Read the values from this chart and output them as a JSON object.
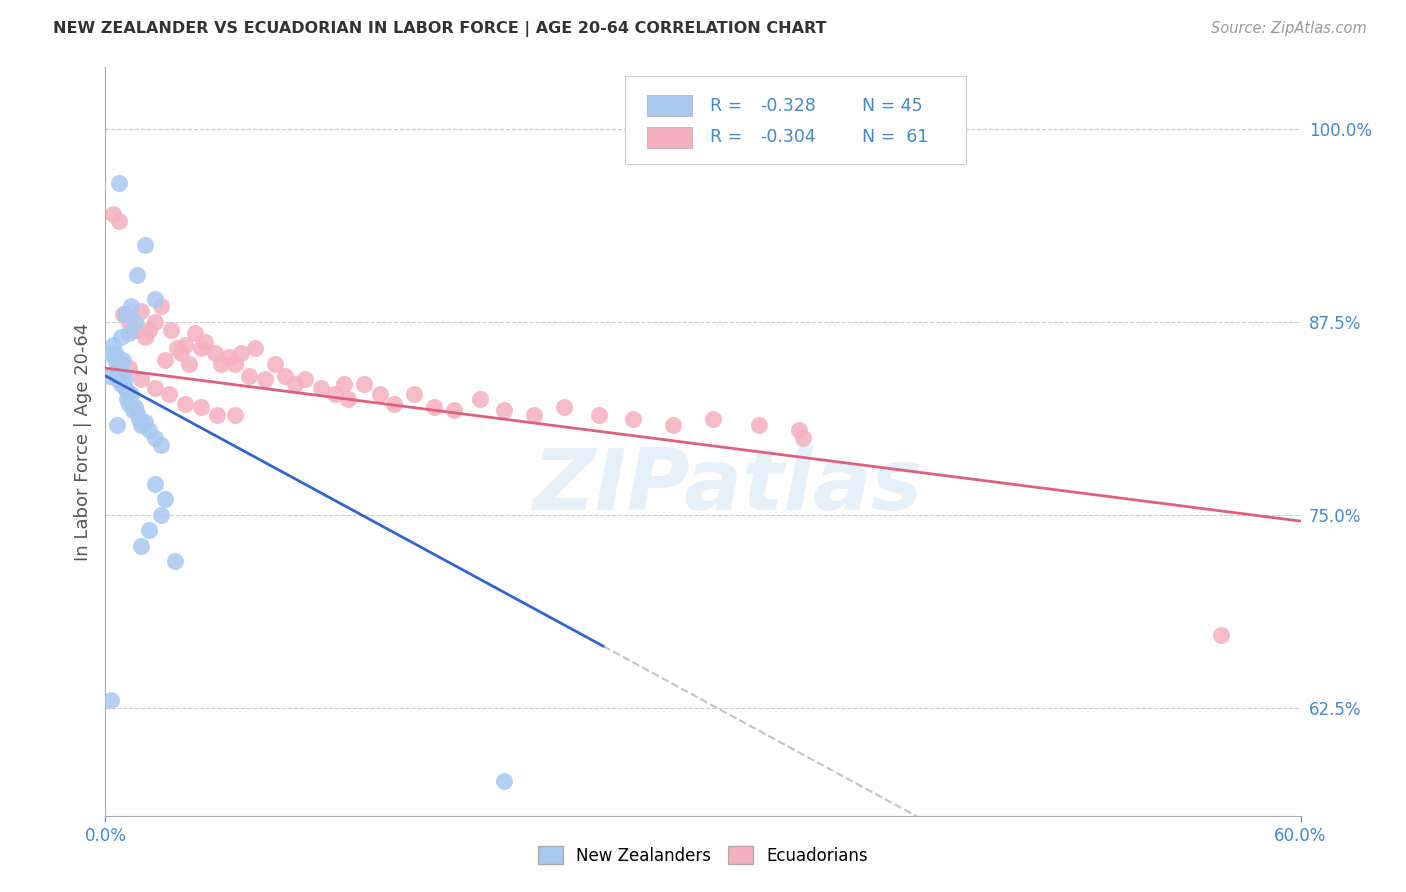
{
  "title": "NEW ZEALANDER VS ECUADORIAN IN LABOR FORCE | AGE 20-64 CORRELATION CHART",
  "source": "Source: ZipAtlas.com",
  "ylabel": "In Labor Force | Age 20-64",
  "right_yticks": [
    0.625,
    0.75,
    0.875,
    1.0
  ],
  "right_ytick_labels": [
    "62.5%",
    "75.0%",
    "87.5%",
    "100.0%"
  ],
  "xlim": [
    0.0,
    0.6
  ],
  "ylim": [
    0.555,
    1.04
  ],
  "nz_color": "#a8c8f0",
  "ec_color": "#f4b0c0",
  "nz_line_color": "#3366cc",
  "ec_line_color": "#dd6080",
  "nz_R": -0.328,
  "nz_N": 45,
  "ec_R": -0.304,
  "ec_N": 61,
  "watermark": "ZIPatlas",
  "background_color": "#ffffff",
  "grid_color": "#cccccc",
  "legend_text_color": "#4488cc",
  "nz_x": [
    0.002,
    0.003,
    0.004,
    0.005,
    0.005,
    0.006,
    0.006,
    0.007,
    0.008,
    0.008,
    0.009,
    0.009,
    0.01,
    0.01,
    0.011,
    0.011,
    0.012,
    0.013,
    0.014,
    0.015,
    0.016,
    0.017,
    0.018,
    0.02,
    0.022,
    0.025,
    0.028,
    0.015,
    0.012,
    0.008,
    0.01,
    0.013,
    0.016,
    0.02,
    0.025,
    0.03,
    0.025,
    0.028,
    0.022,
    0.018,
    0.035,
    0.007,
    0.2,
    0.003,
    0.006
  ],
  "nz_y": [
    0.84,
    0.855,
    0.86,
    0.855,
    0.85,
    0.845,
    0.838,
    0.84,
    0.848,
    0.835,
    0.842,
    0.85,
    0.838,
    0.832,
    0.83,
    0.825,
    0.822,
    0.828,
    0.818,
    0.82,
    0.816,
    0.812,
    0.808,
    0.81,
    0.805,
    0.8,
    0.795,
    0.875,
    0.868,
    0.865,
    0.88,
    0.885,
    0.905,
    0.925,
    0.89,
    0.76,
    0.77,
    0.75,
    0.74,
    0.73,
    0.72,
    0.965,
    0.578,
    0.63,
    0.808
  ],
  "ec_x": [
    0.004,
    0.007,
    0.009,
    0.012,
    0.015,
    0.018,
    0.02,
    0.022,
    0.025,
    0.028,
    0.03,
    0.033,
    0.036,
    0.038,
    0.04,
    0.042,
    0.045,
    0.048,
    0.05,
    0.055,
    0.058,
    0.062,
    0.065,
    0.068,
    0.072,
    0.075,
    0.08,
    0.085,
    0.09,
    0.095,
    0.1,
    0.108,
    0.115,
    0.122,
    0.13,
    0.138,
    0.145,
    0.155,
    0.165,
    0.175,
    0.188,
    0.2,
    0.215,
    0.23,
    0.248,
    0.265,
    0.285,
    0.305,
    0.328,
    0.012,
    0.018,
    0.025,
    0.032,
    0.04,
    0.048,
    0.056,
    0.065,
    0.348,
    0.56,
    0.35,
    0.12
  ],
  "ec_y": [
    0.945,
    0.94,
    0.88,
    0.875,
    0.87,
    0.882,
    0.865,
    0.87,
    0.875,
    0.885,
    0.85,
    0.87,
    0.858,
    0.855,
    0.86,
    0.848,
    0.868,
    0.858,
    0.862,
    0.855,
    0.848,
    0.852,
    0.848,
    0.855,
    0.84,
    0.858,
    0.838,
    0.848,
    0.84,
    0.835,
    0.838,
    0.832,
    0.828,
    0.825,
    0.835,
    0.828,
    0.822,
    0.828,
    0.82,
    0.818,
    0.825,
    0.818,
    0.815,
    0.82,
    0.815,
    0.812,
    0.808,
    0.812,
    0.808,
    0.845,
    0.838,
    0.832,
    0.828,
    0.822,
    0.82,
    0.815,
    0.815,
    0.805,
    0.672,
    0.8,
    0.835
  ]
}
